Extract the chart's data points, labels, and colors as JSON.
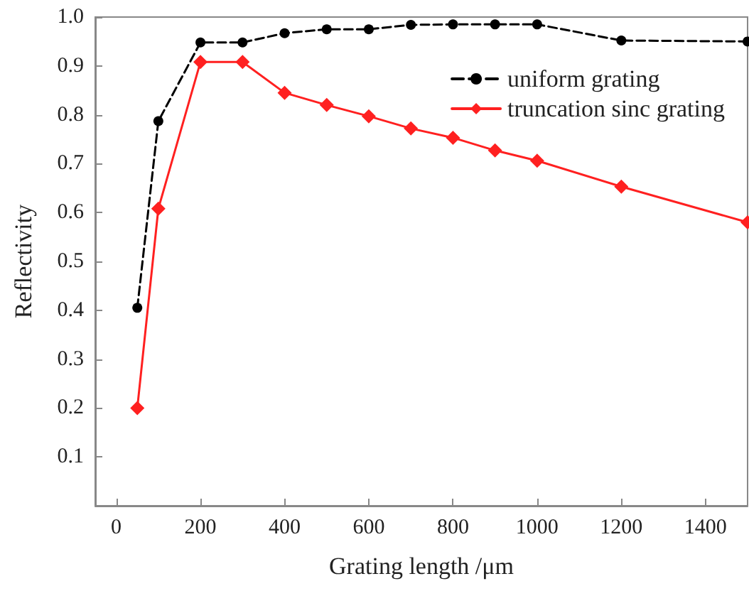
{
  "chart_data": {
    "type": "line",
    "xlabel": "Grating length /μm",
    "ylabel": "Reflectivity",
    "x": [
      50,
      100,
      200,
      300,
      400,
      500,
      600,
      700,
      800,
      900,
      1000,
      1200,
      1500
    ],
    "series": [
      {
        "name": "uniform grating",
        "color": "#000000",
        "marker": "circle",
        "line_style": "dashed",
        "values": [
          0.405,
          0.787,
          0.948,
          0.948,
          0.967,
          0.975,
          0.975,
          0.984,
          0.985,
          0.985,
          0.985,
          0.952,
          0.95
        ]
      },
      {
        "name": "truncation sinc grating",
        "color": "#ff2020",
        "marker": "diamond",
        "line_style": "solid",
        "values": [
          0.2,
          0.608,
          0.908,
          0.908,
          0.845,
          0.82,
          0.797,
          0.772,
          0.753,
          0.727,
          0.706,
          0.653,
          0.58
        ]
      }
    ],
    "xlim": [
      -50,
      1500
    ],
    "xticks": [
      0,
      200,
      400,
      600,
      800,
      1000,
      1200,
      1400
    ],
    "ylim": [
      0,
      1
    ],
    "yticks": [
      {
        "value": 0.1,
        "label": "0.1"
      },
      {
        "value": 0.2,
        "label": "0.2"
      },
      {
        "value": 0.3,
        "label": "0.3"
      },
      {
        "value": 0.4,
        "label": "0.4"
      },
      {
        "value": 0.5,
        "label": "0.5"
      },
      {
        "value": 0.6,
        "label": "0.6"
      },
      {
        "value": 0.7,
        "label": "0.7"
      },
      {
        "value": 0.8,
        "label": "0.8"
      },
      {
        "value": 0.9,
        "label": "0.9"
      },
      {
        "value": 1,
        "label": "1.0"
      }
    ],
    "grid": false,
    "legend": "top right"
  }
}
